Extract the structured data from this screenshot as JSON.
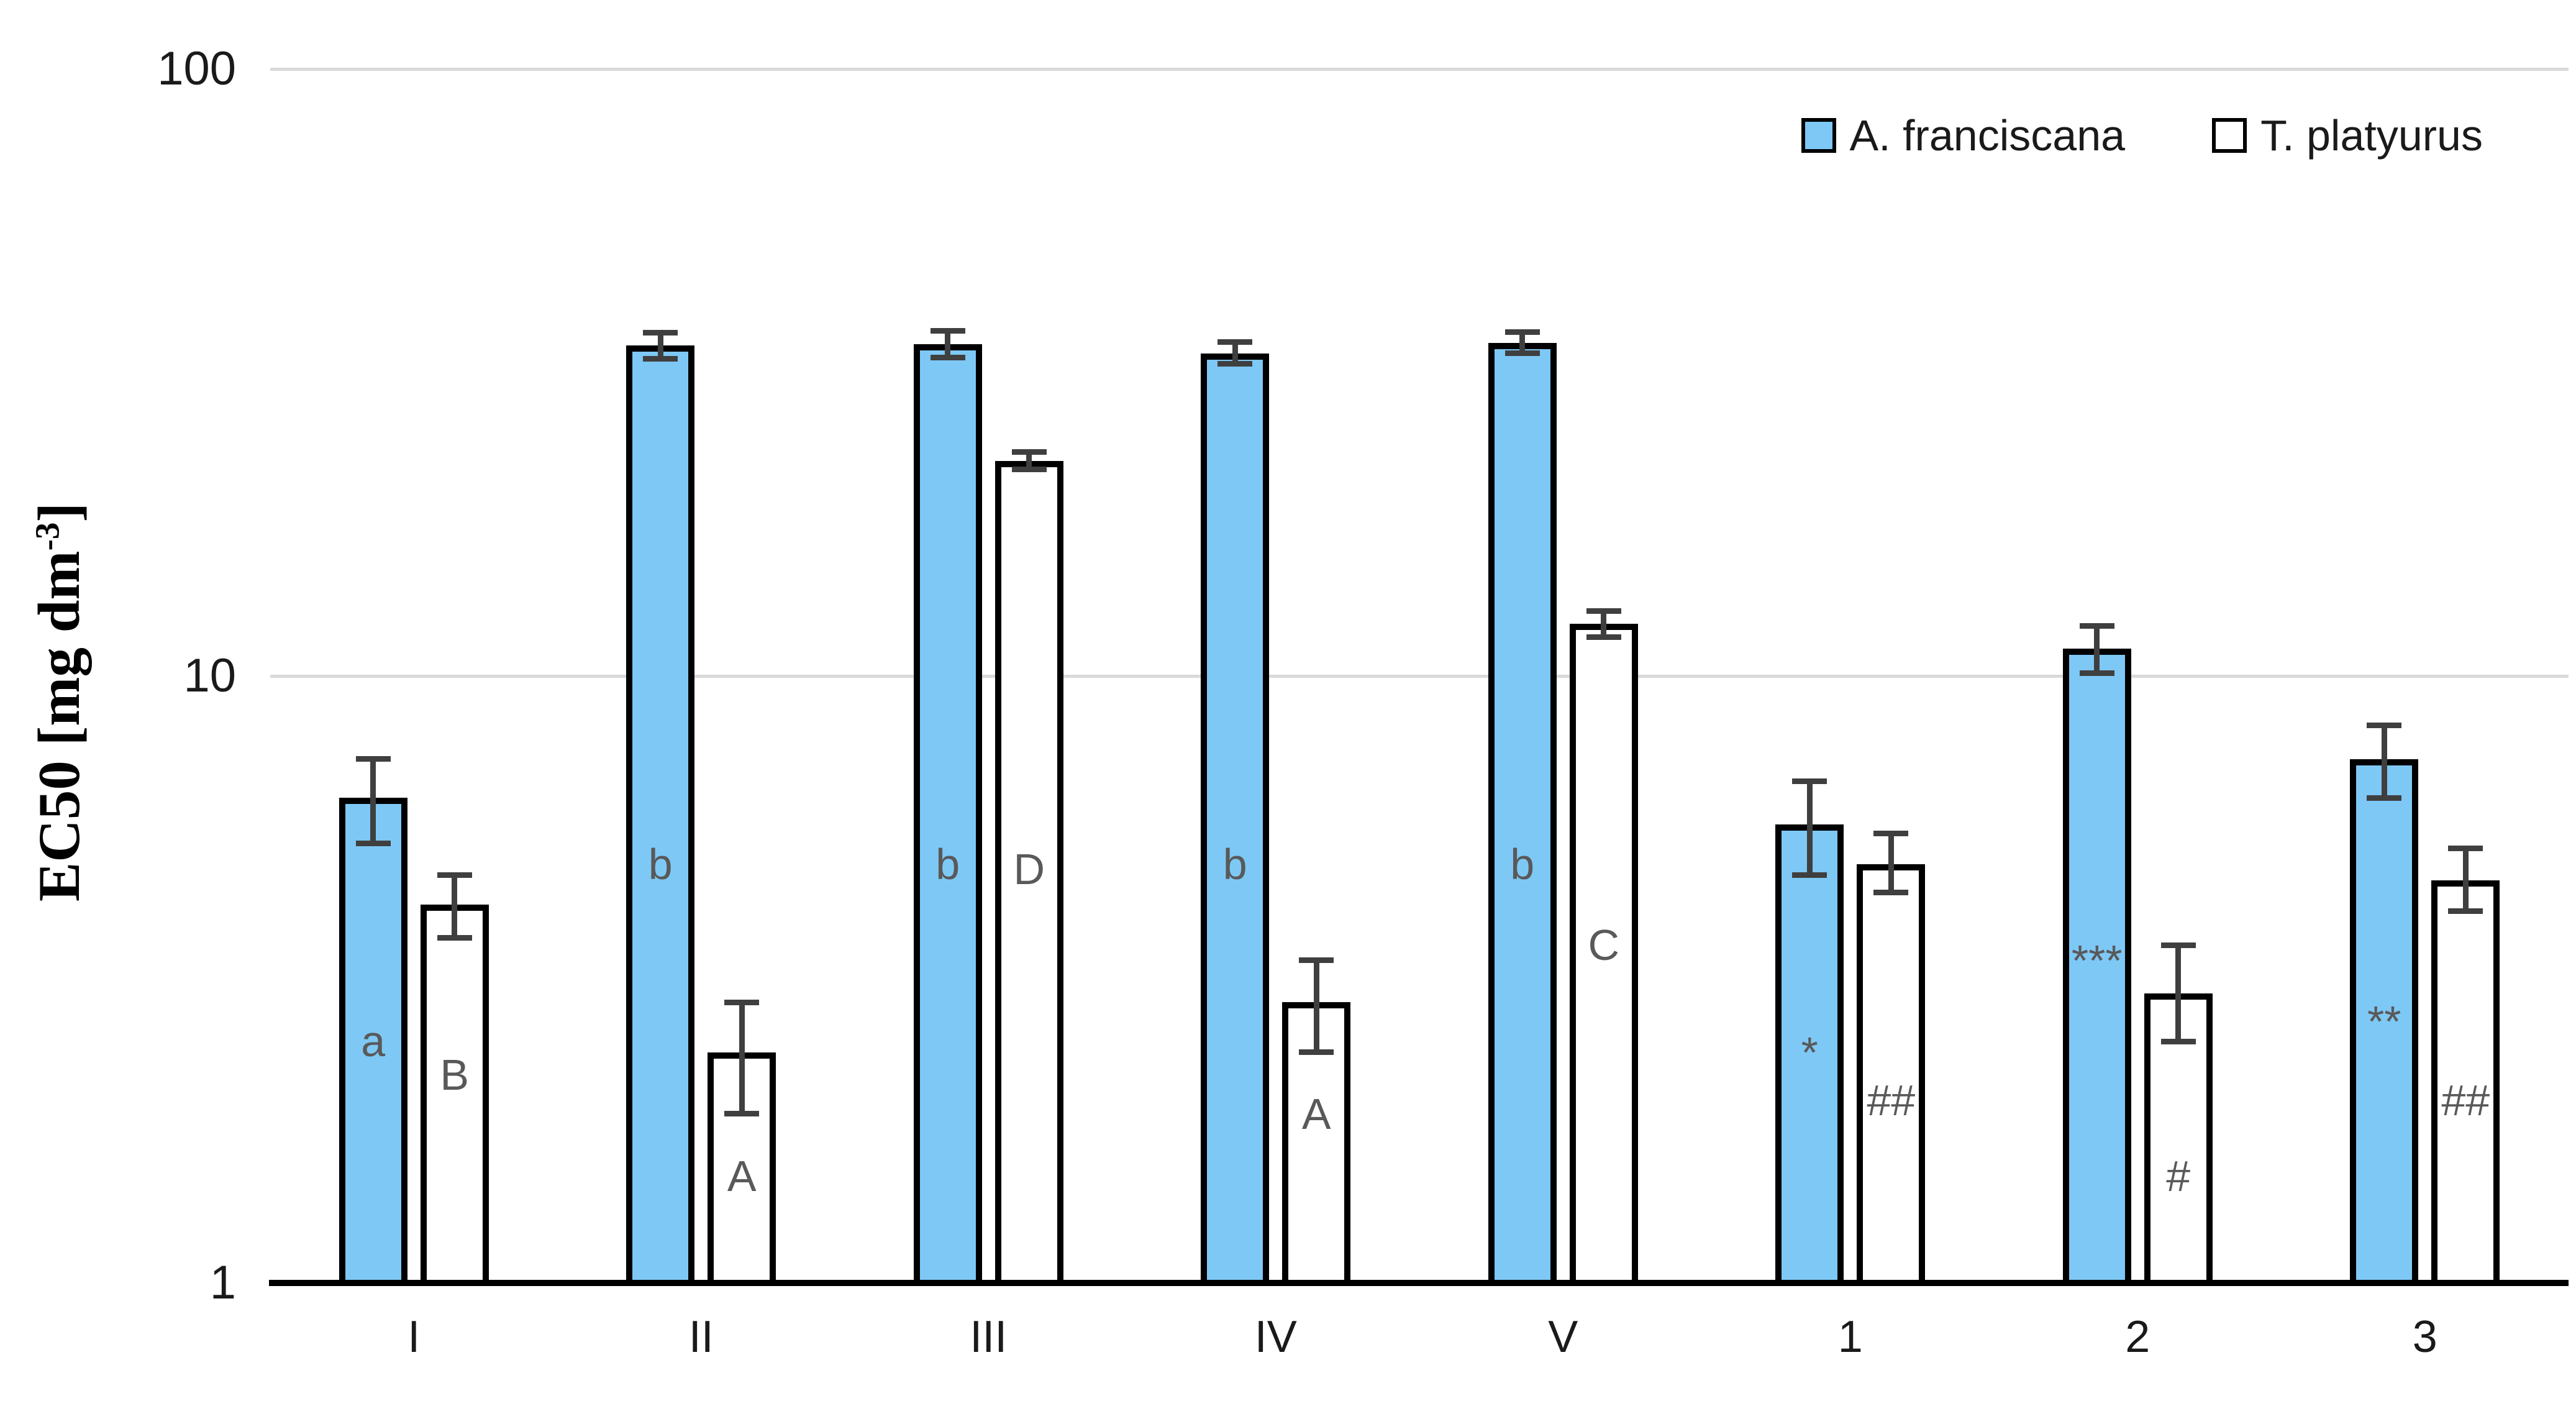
{
  "chart_data": {
    "type": "bar",
    "title": "",
    "xlabel": "",
    "ylabel": {
      "main": "EC50 [mg dm",
      "sup": "-3",
      "end": "]"
    },
    "y_scale": "log",
    "ylim": [
      1,
      100
    ],
    "yticks": [
      {
        "label": "1",
        "value": 1
      },
      {
        "label": "10",
        "value": 10
      },
      {
        "label": "100",
        "value": 100
      }
    ],
    "grid": "horizontal-decade-gridlines",
    "categories": [
      "I",
      "II",
      "III",
      "IV",
      "V",
      "1",
      "2",
      "3"
    ],
    "series": [
      {
        "name": "A. franciscana",
        "fill": "#7EC8F5",
        "values": [
          6.3,
          35.0,
          35.2,
          34.0,
          35.4,
          5.7,
          11.1,
          7.3
        ],
        "err_low": [
          5.3,
          33.3,
          33.5,
          32.7,
          34.0,
          4.7,
          10.1,
          6.3
        ],
        "err_high": [
          7.3,
          36.8,
          37.0,
          35.5,
          36.9,
          6.7,
          12.1,
          8.3
        ],
        "annotations": [
          {
            "text": "a",
            "y": 2.5
          },
          {
            "text": "b",
            "y": 4.9
          },
          {
            "text": "b",
            "y": 4.9
          },
          {
            "text": "b",
            "y": 4.9
          },
          {
            "text": "b",
            "y": 4.9
          },
          {
            "text": "*",
            "y": 2.4
          },
          {
            "text": "***",
            "y": 3.4
          },
          {
            "text": "**",
            "y": 2.7
          }
        ]
      },
      {
        "name": "T. platyurus",
        "fill": "#FFFFFF",
        "values": [
          4.2,
          2.4,
          22.6,
          2.9,
          12.2,
          4.9,
          3.0,
          4.6
        ],
        "err_low": [
          3.7,
          1.9,
          21.9,
          2.4,
          11.6,
          4.4,
          2.5,
          4.1
        ],
        "err_high": [
          4.7,
          2.9,
          23.4,
          3.4,
          12.8,
          5.5,
          3.6,
          5.2
        ],
        "annotations": [
          {
            "text": "B",
            "y": 2.2
          },
          {
            "text": "A",
            "y": 1.5
          },
          {
            "text": "D",
            "y": 4.8
          },
          {
            "text": "A",
            "y": 1.9
          },
          {
            "text": "C",
            "y": 3.6
          },
          {
            "text": "##",
            "y": 2.0
          },
          {
            "text": "#",
            "y": 1.5
          },
          {
            "text": "##",
            "y": 2.0
          }
        ]
      }
    ],
    "legend": {
      "position": "top-right",
      "items": [
        "A. franciscana",
        "T. platyurus"
      ]
    },
    "colors": {
      "bar_border": "#000000",
      "error_bar": "#3F3F3F",
      "gridline": "#D9D9D9",
      "axis": "#000000",
      "annotation": "#595959",
      "tick_text": "#1A1A1A"
    }
  }
}
